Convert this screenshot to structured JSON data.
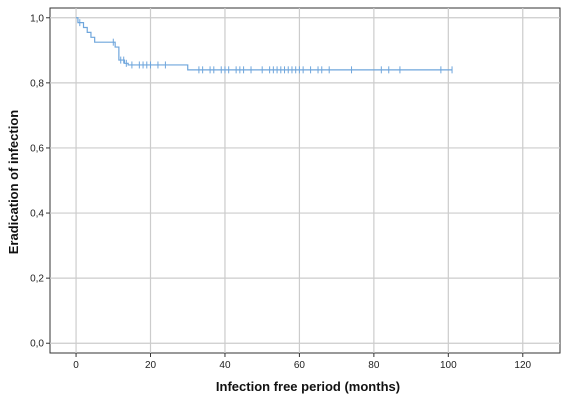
{
  "chart_data": {
    "type": "line",
    "title": "",
    "xlabel": "Infection free period (months)",
    "ylabel": "Eradication of infection",
    "xlim": [
      -7,
      130
    ],
    "ylim": [
      -0.03,
      1.03
    ],
    "x_ticks": [
      0,
      20,
      40,
      60,
      80,
      100,
      120
    ],
    "x_tick_labels": [
      "0",
      "20",
      "40",
      "60",
      "80",
      "100",
      "120"
    ],
    "y_ticks": [
      0.0,
      0.2,
      0.4,
      0.6,
      0.8,
      1.0
    ],
    "y_tick_labels": [
      "0,0",
      "0,2",
      "0,4",
      "0,6",
      "0,8",
      "1,0"
    ],
    "grid": true,
    "legend": "none",
    "line_color": "#6fa6dc",
    "series": [
      {
        "step_points": [
          [
            0,
            1.0
          ],
          [
            0.5,
            0.985
          ],
          [
            2,
            0.97
          ],
          [
            3,
            0.955
          ],
          [
            4,
            0.94
          ],
          [
            5,
            0.925
          ],
          [
            10.5,
            0.91
          ],
          [
            11.5,
            0.87
          ],
          [
            13,
            0.86
          ],
          [
            14,
            0.855
          ],
          [
            30,
            0.84
          ],
          [
            101,
            0.84
          ]
        ],
        "censor_marks": [
          [
            1,
            0.985
          ],
          [
            10,
            0.925
          ],
          [
            12,
            0.87
          ],
          [
            12.8,
            0.87
          ],
          [
            13.5,
            0.86
          ],
          [
            15,
            0.855
          ],
          [
            17,
            0.855
          ],
          [
            18,
            0.855
          ],
          [
            19,
            0.855
          ],
          [
            20,
            0.855
          ],
          [
            22,
            0.855
          ],
          [
            24,
            0.855
          ],
          [
            33,
            0.84
          ],
          [
            34,
            0.84
          ],
          [
            36,
            0.84
          ],
          [
            37,
            0.84
          ],
          [
            39,
            0.84
          ],
          [
            40,
            0.84
          ],
          [
            41,
            0.84
          ],
          [
            43,
            0.84
          ],
          [
            44,
            0.84
          ],
          [
            45,
            0.84
          ],
          [
            47,
            0.84
          ],
          [
            50,
            0.84
          ],
          [
            52,
            0.84
          ],
          [
            53,
            0.84
          ],
          [
            54,
            0.84
          ],
          [
            55,
            0.84
          ],
          [
            56,
            0.84
          ],
          [
            57,
            0.84
          ],
          [
            58,
            0.84
          ],
          [
            59,
            0.84
          ],
          [
            60,
            0.84
          ],
          [
            61,
            0.84
          ],
          [
            63,
            0.84
          ],
          [
            65,
            0.84
          ],
          [
            66,
            0.84
          ],
          [
            68,
            0.84
          ],
          [
            74,
            0.84
          ],
          [
            82,
            0.84
          ],
          [
            84,
            0.84
          ],
          [
            87,
            0.84
          ],
          [
            98,
            0.84
          ],
          [
            101,
            0.84
          ]
        ]
      }
    ]
  }
}
